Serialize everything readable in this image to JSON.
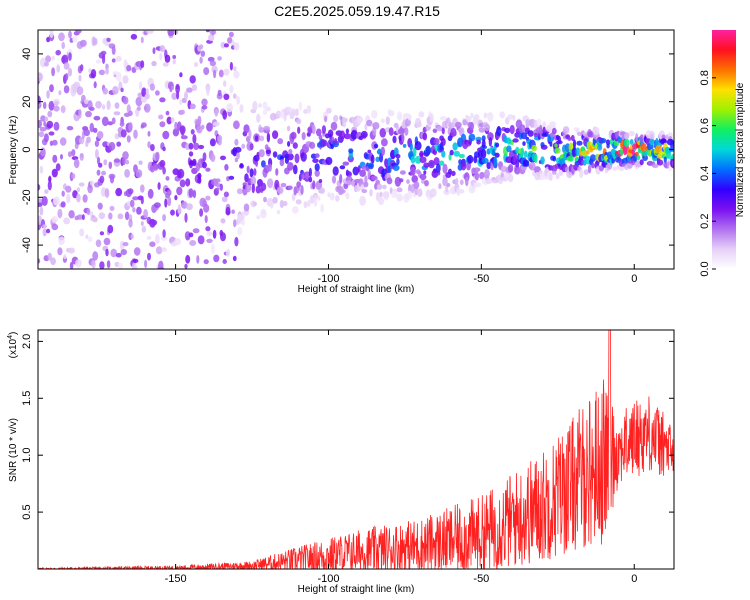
{
  "title": "C2E5.2025.059.19.47.R15",
  "chart_data": [
    {
      "type": "heatmap",
      "xlabel": "Height of straight line (km)",
      "ylabel": "Frequency (Hz)",
      "xlim": [
        -195,
        13
      ],
      "ylim": [
        -50,
        50
      ],
      "x_ticks": [
        -150,
        -100,
        -50,
        0
      ],
      "x_tick_labels": [
        "-150",
        "-100",
        "-50",
        "0"
      ],
      "y_ticks": [
        -40,
        -20,
        0,
        20,
        40
      ],
      "y_tick_labels": [
        "-40",
        "-20",
        "0",
        "20",
        "40"
      ],
      "colorbar": {
        "label": "Normalized spectral amplitude",
        "range": [
          0,
          1
        ],
        "ticks": [
          0.0,
          0.2,
          0.4,
          0.6,
          0.8
        ],
        "tick_labels": [
          "0.0",
          "0.2",
          "0.4",
          "0.6",
          "0.8"
        ],
        "colors": [
          "#ffffff",
          "#e6d0f8",
          "#b070f0",
          "#7a10f0",
          "#3000ff",
          "#0070ff",
          "#00d8d8",
          "#10f060",
          "#a0f000",
          "#ffe000",
          "#ff7000",
          "#ff1020",
          "#ff20a0"
        ]
      },
      "ridge": [
        {
          "x": -195,
          "center": 0,
          "width": 45,
          "amplitude": 0.15
        },
        {
          "x": -140,
          "center": -6,
          "width": 30,
          "amplitude": 0.22
        },
        {
          "x": -120,
          "center": -5,
          "width": 18,
          "amplitude": 0.3
        },
        {
          "x": -100,
          "center": -2,
          "width": 16,
          "amplitude": 0.35
        },
        {
          "x": -80,
          "center": -3,
          "width": 14,
          "amplitude": 0.38
        },
        {
          "x": -60,
          "center": -2,
          "width": 12,
          "amplitude": 0.45
        },
        {
          "x": -40,
          "center": 1,
          "width": 10,
          "amplitude": 0.5
        },
        {
          "x": -20,
          "center": -1,
          "width": 7,
          "amplitude": 0.6
        },
        {
          "x": 0,
          "center": 0,
          "width": 5,
          "amplitude": 0.95
        },
        {
          "x": 13,
          "center": -1,
          "width": 5,
          "amplitude": 0.7
        }
      ]
    },
    {
      "type": "line",
      "xlabel": "Height of straight line (km)",
      "ylabel": "SNR (10 * v/v)",
      "y_multiplier": "(x10",
      "y_multiplier_exp": "4",
      "y_multiplier_close": ")",
      "xlim": [
        -195,
        13
      ],
      "ylim": [
        0,
        2.1
      ],
      "x_ticks": [
        -150,
        -100,
        -50,
        0
      ],
      "x_tick_labels": [
        "-150",
        "-100",
        "-50",
        "0"
      ],
      "y_ticks": [
        0.5,
        1.0,
        1.5,
        2.0
      ],
      "y_tick_labels": [
        "0.5",
        "1.0",
        "1.5",
        "2.0"
      ],
      "color": "#ff2020",
      "envelope": [
        {
          "x": -195,
          "mean": 0.0,
          "amp": 0.01
        },
        {
          "x": -150,
          "mean": 0.01,
          "amp": 0.02
        },
        {
          "x": -125,
          "mean": 0.03,
          "amp": 0.04
        },
        {
          "x": -110,
          "mean": 0.08,
          "amp": 0.12
        },
        {
          "x": -90,
          "mean": 0.15,
          "amp": 0.2
        },
        {
          "x": -70,
          "mean": 0.2,
          "amp": 0.25
        },
        {
          "x": -50,
          "mean": 0.3,
          "amp": 0.35
        },
        {
          "x": -30,
          "mean": 0.55,
          "amp": 0.5
        },
        {
          "x": -20,
          "mean": 0.75,
          "amp": 0.6
        },
        {
          "x": -10,
          "mean": 0.95,
          "amp": 0.75
        },
        {
          "x": -5,
          "mean": 1.05,
          "amp": 0.3
        },
        {
          "x": 0,
          "mean": 1.15,
          "amp": 0.35
        },
        {
          "x": 5,
          "mean": 1.2,
          "amp": 0.35
        },
        {
          "x": 13,
          "mean": 1.0,
          "amp": 0.25
        }
      ],
      "peak_max": 2.1,
      "peak_x": -8
    }
  ]
}
